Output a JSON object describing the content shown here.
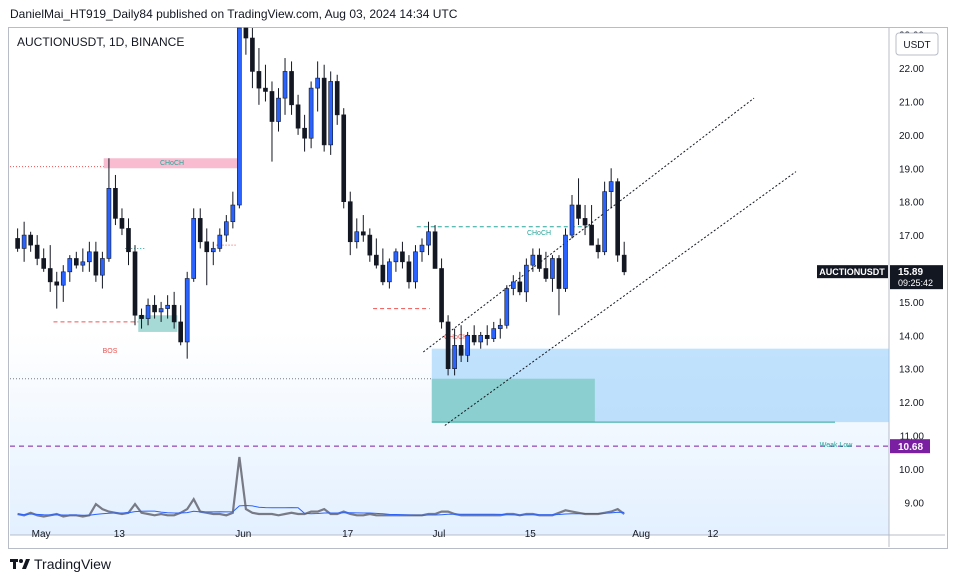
{
  "header": {
    "published_line": "DanielMai_HT919_Daily84 published on TradingView.com, Aug 03, 2024 14:34 UTC"
  },
  "footer": {
    "brand": "TradingView"
  },
  "colors": {
    "up": "#2962ff",
    "down": "#131722",
    "channel": "#131722",
    "demand_zone": "#90caf9",
    "fvg": "#80cbc4",
    "supply_zone": "#f8bbd0",
    "weak_low_line": "#26a69a",
    "purple_line": "#7b1fa2",
    "price_tag": "#131722"
  },
  "chart_data": {
    "type": "candlestick",
    "symbol_label": "AUCTIONUSDT, 1D, BINANCE",
    "currency_button": "USDT",
    "y_ticks": [
      "9.00",
      "10.00",
      "11.00",
      "12.00",
      "13.00",
      "14.00",
      "15.00",
      "16.00",
      "17.00",
      "18.00",
      "19.00",
      "20.00",
      "21.00",
      "22.00",
      "23.00"
    ],
    "ylim": [
      8.5,
      23.2
    ],
    "x_ticks": [
      {
        "label": "May",
        "day": 0
      },
      {
        "label": "13",
        "day": 12
      },
      {
        "label": "Jun",
        "day": 31
      },
      {
        "label": "17",
        "day": 47
      },
      {
        "label": "Jul",
        "day": 61
      },
      {
        "label": "15",
        "day": 75
      },
      {
        "label": "Aug",
        "day": 92
      },
      {
        "label": "12",
        "day": 103
      }
    ],
    "x_range_days": [
      -4,
      130
    ],
    "current_price": {
      "label": "AUCTIONUSDT",
      "value": "15.89",
      "countdown": "09:25:42"
    },
    "level_price": {
      "value": "10.68"
    },
    "annotations": [
      {
        "text": "CHoCH",
        "kind": "choch_up"
      },
      {
        "text": "BOS",
        "kind": "bos"
      },
      {
        "text": "CHoCH",
        "kind": "choch_up_jul"
      },
      {
        "text": "CHoCH",
        "kind": "choch_down"
      },
      {
        "text": "Weak Low",
        "kind": "weak_low"
      }
    ],
    "candles": [
      [
        16.9,
        17.2,
        16.5,
        16.6
      ],
      [
        16.6,
        17.4,
        16.2,
        17.0
      ],
      [
        17.0,
        17.1,
        16.5,
        16.7
      ],
      [
        16.7,
        17.0,
        16.1,
        16.3
      ],
      [
        16.3,
        16.6,
        15.9,
        16.0
      ],
      [
        16.0,
        16.7,
        15.3,
        15.6
      ],
      [
        15.6,
        15.9,
        14.8,
        15.5
      ],
      [
        15.5,
        16.1,
        15.0,
        15.9
      ],
      [
        15.9,
        16.4,
        15.6,
        16.3
      ],
      [
        16.3,
        16.5,
        16.0,
        16.1
      ],
      [
        16.1,
        16.6,
        15.9,
        16.2
      ],
      [
        16.2,
        16.8,
        15.9,
        16.5
      ],
      [
        16.5,
        16.8,
        15.6,
        15.8
      ],
      [
        15.8,
        16.5,
        15.4,
        16.3
      ],
      [
        16.3,
        19.3,
        16.2,
        18.4
      ],
      [
        18.4,
        18.8,
        17.3,
        17.5
      ],
      [
        17.5,
        17.8,
        17.0,
        17.2
      ],
      [
        17.2,
        17.5,
        16.1,
        16.5
      ],
      [
        16.5,
        16.7,
        14.3,
        14.6
      ],
      [
        14.6,
        14.8,
        14.2,
        14.5
      ],
      [
        14.5,
        15.1,
        14.3,
        14.9
      ],
      [
        14.9,
        15.2,
        14.5,
        14.7
      ],
      [
        14.7,
        15.0,
        14.4,
        14.8
      ],
      [
        14.8,
        15.2,
        14.5,
        14.9
      ],
      [
        14.9,
        15.3,
        14.2,
        14.4
      ],
      [
        14.4,
        14.9,
        13.7,
        13.8
      ],
      [
        13.8,
        15.9,
        13.3,
        15.7
      ],
      [
        15.7,
        17.8,
        15.6,
        17.5
      ],
      [
        17.5,
        17.8,
        16.6,
        16.8
      ],
      [
        16.8,
        17.2,
        15.5,
        16.5
      ],
      [
        16.5,
        16.8,
        16.1,
        16.6
      ],
      [
        16.6,
        17.2,
        16.5,
        17.0
      ],
      [
        17.0,
        17.6,
        16.8,
        17.4
      ],
      [
        17.4,
        18.3,
        17.2,
        17.9
      ],
      [
        17.9,
        26.0,
        17.8,
        23.4
      ],
      [
        23.4,
        24.2,
        22.4,
        22.9
      ],
      [
        22.9,
        23.3,
        21.4,
        21.9
      ],
      [
        21.9,
        22.6,
        20.9,
        21.4
      ],
      [
        21.4,
        22.1,
        21.0,
        21.3
      ],
      [
        21.3,
        21.6,
        19.2,
        20.4
      ],
      [
        20.4,
        21.4,
        20.1,
        21.1
      ],
      [
        21.1,
        22.3,
        20.6,
        21.9
      ],
      [
        21.9,
        22.2,
        20.6,
        20.9
      ],
      [
        20.9,
        21.2,
        20.0,
        20.2
      ],
      [
        20.2,
        20.6,
        19.5,
        19.9
      ],
      [
        19.9,
        21.6,
        19.6,
        21.4
      ],
      [
        21.4,
        22.2,
        20.7,
        21.7
      ],
      [
        21.7,
        22.1,
        19.5,
        19.7
      ],
      [
        19.7,
        21.9,
        19.4,
        21.6
      ],
      [
        21.6,
        21.8,
        20.3,
        20.6
      ],
      [
        20.6,
        20.8,
        17.8,
        18.0
      ],
      [
        18.0,
        18.3,
        16.4,
        16.8
      ],
      [
        16.8,
        17.5,
        16.6,
        17.1
      ],
      [
        17.1,
        17.6,
        16.8,
        17.0
      ],
      [
        17.0,
        17.2,
        16.2,
        16.4
      ],
      [
        16.4,
        16.9,
        16.0,
        16.1
      ],
      [
        16.1,
        16.6,
        15.5,
        15.6
      ],
      [
        15.6,
        16.3,
        15.4,
        16.2
      ],
      [
        16.2,
        16.6,
        15.9,
        16.5
      ],
      [
        16.5,
        16.8,
        16.0,
        16.2
      ],
      [
        16.2,
        16.4,
        15.4,
        15.6
      ],
      [
        15.6,
        16.7,
        15.4,
        16.5
      ],
      [
        16.5,
        16.9,
        16.2,
        16.7
      ],
      [
        16.7,
        17.4,
        16.4,
        17.1
      ],
      [
        17.1,
        17.3,
        16.1,
        16.0
      ],
      [
        16.0,
        16.3,
        14.2,
        14.4
      ],
      [
        14.4,
        14.6,
        12.8,
        13.0
      ],
      [
        13.0,
        14.2,
        12.8,
        13.7
      ],
      [
        13.7,
        14.3,
        13.2,
        13.4
      ],
      [
        13.4,
        14.1,
        13.2,
        14.0
      ],
      [
        14.0,
        14.3,
        13.7,
        13.8
      ],
      [
        13.8,
        14.1,
        13.6,
        14.0
      ],
      [
        14.0,
        14.3,
        13.7,
        13.9
      ],
      [
        13.9,
        14.4,
        13.8,
        14.2
      ],
      [
        14.2,
        14.5,
        13.9,
        14.3
      ],
      [
        14.3,
        15.5,
        14.2,
        15.4
      ],
      [
        15.4,
        15.8,
        15.2,
        15.6
      ],
      [
        15.6,
        15.9,
        15.2,
        15.3
      ],
      [
        15.3,
        16.3,
        15.0,
        16.1
      ],
      [
        16.1,
        16.6,
        15.9,
        16.4
      ],
      [
        16.4,
        16.6,
        15.9,
        16.0
      ],
      [
        16.0,
        16.5,
        15.6,
        15.7
      ],
      [
        15.7,
        16.4,
        15.3,
        16.3
      ],
      [
        16.3,
        16.4,
        14.6,
        15.4
      ],
      [
        15.4,
        17.2,
        15.3,
        17.0
      ],
      [
        17.0,
        18.2,
        16.9,
        17.9
      ],
      [
        17.9,
        18.7,
        17.3,
        17.5
      ],
      [
        17.5,
        17.9,
        17.0,
        17.3
      ],
      [
        17.3,
        17.9,
        16.8,
        16.7
      ],
      [
        16.7,
        16.9,
        16.3,
        16.5
      ],
      [
        16.5,
        18.6,
        16.4,
        18.3
      ],
      [
        18.3,
        19.0,
        17.8,
        18.6
      ],
      [
        18.6,
        18.7,
        16.2,
        16.4
      ],
      [
        16.4,
        16.8,
        15.8,
        15.9
      ]
    ],
    "volume_scale_max": 1.0,
    "volume": [
      0.04,
      0.03,
      0.05,
      0.03,
      0.02,
      0.03,
      0.04,
      0.02,
      0.03,
      0.03,
      0.02,
      0.03,
      0.12,
      0.08,
      0.06,
      0.05,
      0.04,
      0.05,
      0.12,
      0.05,
      0.04,
      0.03,
      0.04,
      0.03,
      0.03,
      0.05,
      0.08,
      0.16,
      0.06,
      0.05,
      0.04,
      0.04,
      0.03,
      0.05,
      0.5,
      0.08,
      0.05,
      0.04,
      0.04,
      0.04,
      0.03,
      0.04,
      0.05,
      0.04,
      0.04,
      0.06,
      0.06,
      0.08,
      0.04,
      0.04,
      0.06,
      0.04,
      0.03,
      0.03,
      0.04,
      0.03,
      0.03,
      0.03,
      0.03,
      0.03,
      0.03,
      0.03,
      0.03,
      0.04,
      0.04,
      0.06,
      0.06,
      0.04,
      0.03,
      0.03,
      0.03,
      0.03,
      0.03,
      0.03,
      0.03,
      0.04,
      0.04,
      0.03,
      0.04,
      0.04,
      0.03,
      0.03,
      0.03,
      0.05,
      0.07,
      0.06,
      0.05,
      0.04,
      0.04,
      0.04,
      0.05,
      0.06,
      0.08,
      0.04
    ]
  }
}
